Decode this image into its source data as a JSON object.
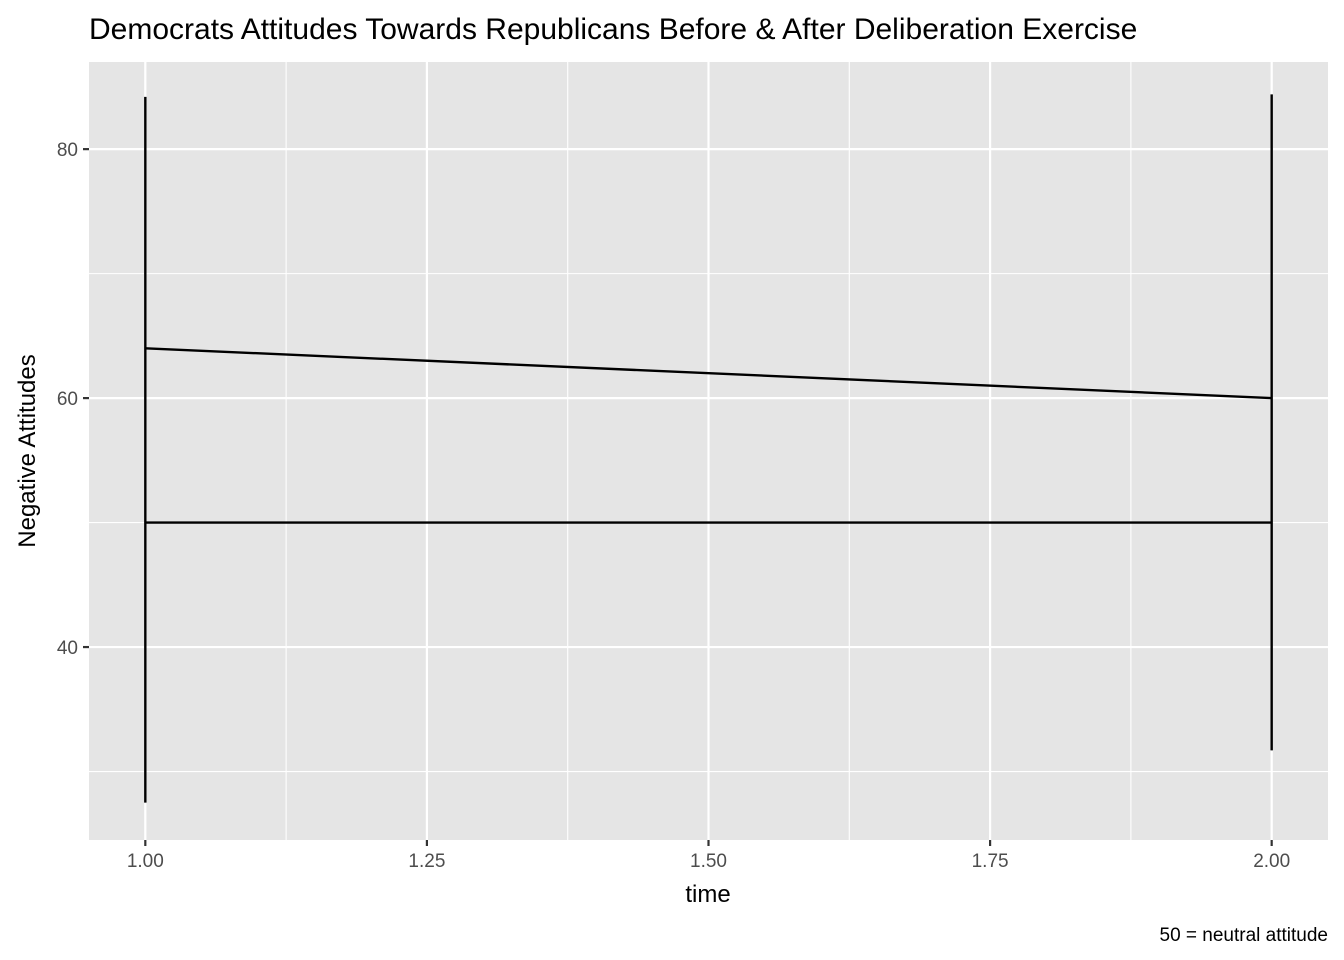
{
  "chart_data": {
    "type": "line",
    "title": "Democrats Attitudes Towards Republicans Before & After Deliberation Exercise",
    "xlabel": "time",
    "ylabel": "Negative Attitudes",
    "caption": "50 = neutral attitude",
    "xlim": [
      0.95,
      2.05
    ],
    "ylim": [
      24.5,
      87
    ],
    "x_ticks": [
      1.0,
      1.25,
      1.5,
      1.75,
      2.0
    ],
    "x_tick_labels": [
      "1.00",
      "1.25",
      "1.50",
      "1.75",
      "2.00"
    ],
    "x_minor_ticks": [
      1.125,
      1.375,
      1.625,
      1.875
    ],
    "y_ticks": [
      40,
      60,
      80
    ],
    "y_tick_labels": [
      "40",
      "60",
      "80"
    ],
    "y_minor_ticks": [
      30,
      50,
      70
    ],
    "grid": true,
    "series": [
      {
        "x": [
          1,
          2
        ],
        "y": [
          64,
          60
        ]
      }
    ],
    "error_bars": [
      {
        "x": 1,
        "ymin": 27.5,
        "ymax": 84.2
      },
      {
        "x": 2,
        "ymin": 31.7,
        "ymax": 84.4
      }
    ],
    "reference_line": {
      "y": 50,
      "x": [
        1,
        2
      ]
    },
    "colors": {
      "panel_background": "#e5e5e5",
      "grid": "#ffffff",
      "line": "#000000",
      "tick_text": "#4d4d4d"
    }
  }
}
